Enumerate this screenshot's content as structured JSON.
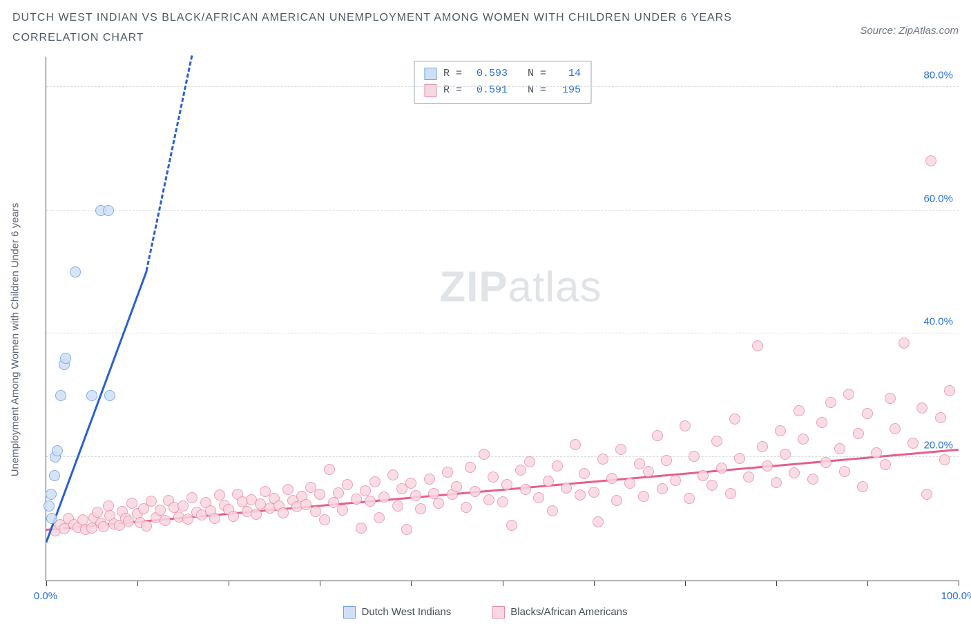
{
  "title_line1": "DUTCH WEST INDIAN VS BLACK/AFRICAN AMERICAN UNEMPLOYMENT AMONG WOMEN WITH CHILDREN UNDER 6 YEARS",
  "title_line2": "CORRELATION CHART",
  "source_label": "Source: ZipAtlas.com",
  "ylabel": "Unemployment Among Women with Children Under 6 years",
  "watermark_bold": "ZIP",
  "watermark_rest": "atlas",
  "chart": {
    "type": "scatter",
    "background_color": "#ffffff",
    "grid_color": "#d6dadf",
    "axis_color": "#444444",
    "xlim": [
      0,
      100
    ],
    "ylim": [
      0,
      85
    ],
    "x_ticks": [
      0,
      10,
      20,
      30,
      40,
      50,
      60,
      70,
      80,
      90,
      100
    ],
    "x_tick_labels": {
      "0": "0.0%",
      "100": "100.0%"
    },
    "x_tick_label_color": "#2a6fd6",
    "y_grid": [
      20,
      40,
      60,
      80
    ],
    "y_tick_labels": {
      "20": "20.0%",
      "40": "40.0%",
      "60": "60.0%",
      "80": "80.0%"
    },
    "y_tick_label_color": "#2a6fd6",
    "marker_radius": 8,
    "marker_stroke_width": 1.5,
    "series": [
      {
        "name": "Dutch West Indians",
        "fill": "#cfe0f6",
        "stroke": "#6fa0df",
        "R": "0.593",
        "N": "14",
        "trend": {
          "color": "#2a5fd0",
          "width": 3,
          "x1": 0,
          "y1": 6,
          "x2": 11,
          "y2": 50,
          "dash_after_x": 11,
          "dash_to_x": 16,
          "dash_to_y": 85
        },
        "points": [
          [
            0.3,
            12
          ],
          [
            0.5,
            14
          ],
          [
            0.6,
            10
          ],
          [
            0.9,
            17
          ],
          [
            1.0,
            20
          ],
          [
            1.2,
            21
          ],
          [
            1.6,
            30
          ],
          [
            2.0,
            35
          ],
          [
            2.1,
            36
          ],
          [
            3.2,
            50
          ],
          [
            5.0,
            30
          ],
          [
            7.0,
            30
          ],
          [
            6.0,
            60
          ],
          [
            6.8,
            60
          ]
        ]
      },
      {
        "name": "Blacks/African Americans",
        "fill": "#f9d7e0",
        "stroke": "#e790ad",
        "R": "0.591",
        "N": "195",
        "trend": {
          "color": "#e75d8c",
          "width": 3,
          "x1": 0,
          "y1": 8,
          "x2": 100,
          "y2": 21
        },
        "points": [
          [
            1,
            8
          ],
          [
            1.5,
            9
          ],
          [
            2,
            8.3
          ],
          [
            2.4,
            10
          ],
          [
            3,
            9
          ],
          [
            3.5,
            8.6
          ],
          [
            4,
            9.8
          ],
          [
            4.3,
            8.2
          ],
          [
            5,
            8.5
          ],
          [
            5.2,
            10.2
          ],
          [
            5.6,
            11
          ],
          [
            6,
            9.3
          ],
          [
            6.3,
            8.7
          ],
          [
            6.8,
            12
          ],
          [
            7,
            10.5
          ],
          [
            7.4,
            9.1
          ],
          [
            8,
            8.9
          ],
          [
            8.3,
            11.2
          ],
          [
            8.7,
            10
          ],
          [
            9,
            9.6
          ],
          [
            9.4,
            12.5
          ],
          [
            10,
            10.8
          ],
          [
            10.3,
            9.4
          ],
          [
            10.7,
            11.6
          ],
          [
            11,
            8.8
          ],
          [
            11.5,
            12.8
          ],
          [
            12,
            10.1
          ],
          [
            12.5,
            11.4
          ],
          [
            13,
            9.7
          ],
          [
            13.4,
            13
          ],
          [
            14,
            11.8
          ],
          [
            14.5,
            10.3
          ],
          [
            15,
            12.1
          ],
          [
            15.5,
            9.9
          ],
          [
            16,
            13.4
          ],
          [
            16.5,
            11
          ],
          [
            17,
            10.6
          ],
          [
            17.5,
            12.6
          ],
          [
            18,
            11.3
          ],
          [
            18.5,
            10
          ],
          [
            19,
            13.8
          ],
          [
            19.5,
            12.2
          ],
          [
            20,
            11.5
          ],
          [
            20.5,
            10.4
          ],
          [
            21,
            14
          ],
          [
            21.5,
            12.7
          ],
          [
            22,
            11.1
          ],
          [
            22.5,
            13.1
          ],
          [
            23,
            10.7
          ],
          [
            23.5,
            12.4
          ],
          [
            24,
            14.4
          ],
          [
            24.5,
            11.7
          ],
          [
            25,
            13.3
          ],
          [
            25.5,
            12
          ],
          [
            26,
            10.9
          ],
          [
            26.5,
            14.7
          ],
          [
            27,
            12.9
          ],
          [
            27.5,
            11.9
          ],
          [
            28,
            13.6
          ],
          [
            28.5,
            12.3
          ],
          [
            29,
            15.1
          ],
          [
            29.5,
            11.2
          ],
          [
            30,
            13.9
          ],
          [
            30.5,
            9.8
          ],
          [
            31,
            18
          ],
          [
            31.5,
            12.6
          ],
          [
            32,
            14.2
          ],
          [
            32.5,
            11.4
          ],
          [
            33,
            15.5
          ],
          [
            34,
            13.2
          ],
          [
            34.5,
            8.5
          ],
          [
            35,
            14.5
          ],
          [
            35.5,
            12.8
          ],
          [
            36,
            16
          ],
          [
            36.5,
            10.2
          ],
          [
            37,
            13.5
          ],
          [
            38,
            17.1
          ],
          [
            38.5,
            12.1
          ],
          [
            39,
            14.8
          ],
          [
            39.5,
            8.2
          ],
          [
            40,
            15.8
          ],
          [
            40.5,
            13.7
          ],
          [
            41,
            11.6
          ],
          [
            42,
            16.4
          ],
          [
            42.5,
            14.1
          ],
          [
            43,
            12.5
          ],
          [
            44,
            17.5
          ],
          [
            44.5,
            13.9
          ],
          [
            45,
            15.2
          ],
          [
            46,
            11.8
          ],
          [
            46.5,
            18.3
          ],
          [
            47,
            14.4
          ],
          [
            48,
            20.5
          ],
          [
            48.5,
            13.1
          ],
          [
            49,
            16.7
          ],
          [
            50,
            12.7
          ],
          [
            50.5,
            15.5
          ],
          [
            51,
            8.9
          ],
          [
            52,
            17.9
          ],
          [
            52.5,
            14.7
          ],
          [
            53,
            19.2
          ],
          [
            54,
            13.4
          ],
          [
            55,
            16.1
          ],
          [
            55.5,
            11.3
          ],
          [
            56,
            18.6
          ],
          [
            57,
            15
          ],
          [
            58,
            22
          ],
          [
            58.5,
            13.8
          ],
          [
            59,
            17.3
          ],
          [
            60,
            14.3
          ],
          [
            60.5,
            9.5
          ],
          [
            61,
            19.7
          ],
          [
            62,
            16.5
          ],
          [
            62.5,
            12.9
          ],
          [
            63,
            21.2
          ],
          [
            64,
            15.7
          ],
          [
            65,
            18.9
          ],
          [
            65.5,
            13.6
          ],
          [
            66,
            17.6
          ],
          [
            67,
            23.5
          ],
          [
            67.5,
            14.9
          ],
          [
            68,
            19.4
          ],
          [
            69,
            16.2
          ],
          [
            70,
            25
          ],
          [
            70.5,
            13.3
          ],
          [
            71,
            20.1
          ],
          [
            72,
            17
          ],
          [
            73,
            15.4
          ],
          [
            73.5,
            22.6
          ],
          [
            74,
            18.2
          ],
          [
            75,
            14.1
          ],
          [
            75.5,
            26.2
          ],
          [
            76,
            19.8
          ],
          [
            77,
            16.8
          ],
          [
            78,
            38
          ],
          [
            78.5,
            21.7
          ],
          [
            79,
            18.5
          ],
          [
            80,
            15.9
          ],
          [
            80.5,
            24.3
          ],
          [
            81,
            20.4
          ],
          [
            82,
            17.4
          ],
          [
            82.5,
            27.5
          ],
          [
            83,
            22.9
          ],
          [
            84,
            16.4
          ],
          [
            85,
            25.6
          ],
          [
            85.5,
            19.1
          ],
          [
            86,
            28.8
          ],
          [
            87,
            21.3
          ],
          [
            87.5,
            17.7
          ],
          [
            88,
            30.2
          ],
          [
            89,
            23.8
          ],
          [
            89.5,
            15.2
          ],
          [
            90,
            27.1
          ],
          [
            91,
            20.7
          ],
          [
            92,
            18.8
          ],
          [
            92.5,
            29.5
          ],
          [
            93,
            24.6
          ],
          [
            94,
            38.5
          ],
          [
            95,
            22.2
          ],
          [
            96,
            28
          ],
          [
            96.5,
            13.9
          ],
          [
            97,
            68
          ],
          [
            98,
            26.4
          ],
          [
            98.5,
            19.5
          ],
          [
            99,
            30.8
          ]
        ]
      }
    ]
  },
  "legend": {
    "R_label": "R =",
    "N_label": "N ="
  }
}
